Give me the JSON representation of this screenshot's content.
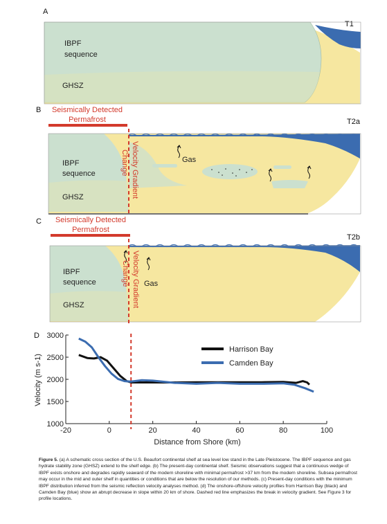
{
  "panels": {
    "a": {
      "letter": "A",
      "tag": "T1",
      "ibpf_line1": "IBPF",
      "ibpf_line2": "sequence",
      "ghsz": "GHSZ"
    },
    "b": {
      "letter": "B",
      "tag": "T2a",
      "permafrost_line1": "Seismically Detected",
      "permafrost_line2": "Permafrost",
      "velocity_line1": "Velocity Gradient",
      "velocity_line2": "Change",
      "ibpf_line1": "IBPF",
      "ibpf_line2": "sequence",
      "ghsz": "GHSZ",
      "gas": "Gas"
    },
    "c": {
      "letter": "C",
      "tag": "T2b",
      "permafrost_line1": "Seismically Detected",
      "permafrost_line2": "Permafrost",
      "velocity_line1": "Velocity Gradient",
      "velocity_line2": "Change",
      "ibpf_line1": "IBPF",
      "ibpf_line2": "sequence",
      "ghsz": "GHSZ",
      "gas": "Gas"
    }
  },
  "colors": {
    "sand": "#f6e7a0",
    "green": "#cbe0cf",
    "sea": "#3b6cb0",
    "red": "#d33a2c",
    "harrison": "#111111",
    "camden": "#3b6cb0"
  },
  "chart_data": {
    "type": "line",
    "panel_letter": "D",
    "xlabel": "Distance from Shore (km)",
    "ylabel": "Velocity (m s-1)",
    "xlim": [
      -20,
      100
    ],
    "ylim": [
      1000,
      3000
    ],
    "xticks": [
      -20,
      0,
      20,
      40,
      60,
      80,
      100
    ],
    "yticks": [
      1000,
      1500,
      2000,
      2500,
      3000
    ],
    "grid": false,
    "legend_position": "top-right",
    "vline_x": 10,
    "series": [
      {
        "name": "Harrison Bay",
        "color": "#111111",
        "x": [
          -14,
          -10,
          -7,
          -4,
          -1,
          2,
          5,
          8,
          10,
          15,
          20,
          30,
          40,
          50,
          60,
          70,
          80,
          86,
          89,
          91,
          92
        ],
        "y": [
          2550,
          2480,
          2470,
          2500,
          2420,
          2250,
          2080,
          1960,
          1930,
          1930,
          1930,
          1930,
          1935,
          1935,
          1935,
          1935,
          1940,
          1920,
          1960,
          1930,
          1880
        ]
      },
      {
        "name": "Camden Bay",
        "color": "#3b6cb0",
        "x": [
          -14,
          -11,
          -8,
          -5,
          -2,
          1,
          4,
          7,
          10,
          15,
          20,
          30,
          40,
          50,
          60,
          70,
          80,
          85,
          90,
          94
        ],
        "y": [
          2920,
          2850,
          2720,
          2500,
          2300,
          2130,
          2010,
          1960,
          1950,
          1980,
          1970,
          1920,
          1900,
          1920,
          1900,
          1900,
          1910,
          1880,
          1800,
          1720
        ]
      }
    ]
  },
  "caption": {
    "lead": "Figure 5.",
    "text": "(a) A schematic cross section of the U.S. Beaufort continental shelf at sea level low stand in the Late Pleistocene. The IBPF sequence and gas hydrate stability zone (GHSZ) extend to the shelf edge. (b) The present-day continental shelf. Seismic observations suggest that a continuous wedge of IBPF exists onshore and degrades rapidly seaward of the modern shoreline with minimal permafrost >37 km from the modern shoreline. Subsea permafrost may occur in the mid and outer shelf in quantities or conditions that are below the resolution of our methods. (c) Present-day conditions with the minimum IBPF distribution inferred from the seismic reflection velocity analyses method. (d) The onshore-offshore velocity profiles from Harrison Bay (black) and Camden Bay (blue) show an abrupt decrease in slope within 20 km of shore. Dashed red line emphasizes the break in velocity gradient. See Figure 3 for profile locations."
  }
}
